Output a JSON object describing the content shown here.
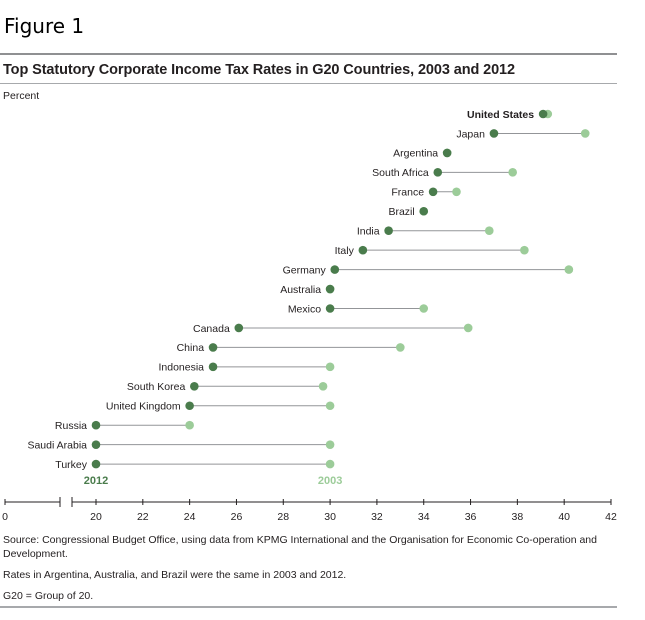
{
  "figure_label": "Figure 1",
  "chart_data": {
    "type": "dumbbell",
    "title": "Top Statutory Corporate Income Tax Rates in G20 Countries, 2003 and 2012",
    "ylabel": "Percent",
    "xlim": [
      0,
      42
    ],
    "axis_break": [
      0,
      20
    ],
    "x_ticks": [
      0,
      20,
      22,
      24,
      26,
      28,
      30,
      32,
      34,
      36,
      38,
      40,
      42
    ],
    "series": [
      {
        "name": "2012",
        "color": "#4a7c4c"
      },
      {
        "name": "2003",
        "color": "#9ccc99"
      }
    ],
    "categories": [
      "United States",
      "Japan",
      "Argentina",
      "South Africa",
      "France",
      "Brazil",
      "India",
      "Italy",
      "Germany",
      "Australia",
      "Mexico",
      "Canada",
      "China",
      "Indonesia",
      "South Korea",
      "United Kingdom",
      "Russia",
      "Saudi Arabia",
      "Turkey"
    ],
    "values_2012": [
      39.1,
      37.0,
      35.0,
      34.6,
      34.4,
      34.0,
      32.5,
      31.4,
      30.2,
      30.0,
      30.0,
      26.1,
      25.0,
      25.0,
      24.2,
      24.0,
      20.0,
      20.0,
      20.0
    ],
    "values_2003": [
      39.3,
      40.9,
      35.0,
      37.8,
      35.4,
      34.0,
      36.8,
      38.3,
      40.2,
      30.0,
      34.0,
      35.9,
      33.0,
      30.0,
      29.7,
      30.0,
      24.0,
      30.0,
      30.0
    ],
    "highlighted": "United States"
  },
  "legend": {
    "label_2012": "2012",
    "label_2003": "2003"
  },
  "footer": {
    "source": "Source: Congressional Budget Office, using data from KPMG International and the Organisation for Economic Co-operation and Development.",
    "note": "Rates in Argentina, Australia, and Brazil were the same in 2003 and 2012.",
    "g20": "G20 = Group of 20."
  }
}
